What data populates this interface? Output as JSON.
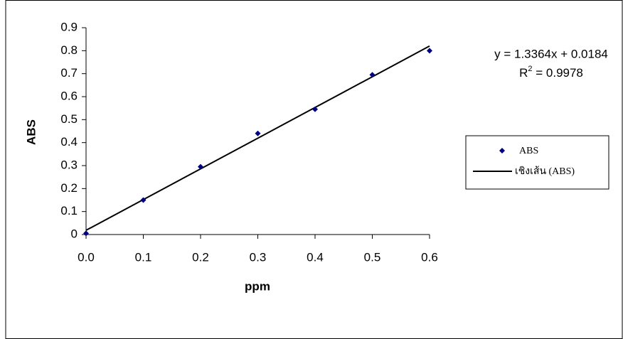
{
  "chart_data": {
    "type": "scatter",
    "x_label": "ppm",
    "y_label": "ABS",
    "x": [
      0,
      0.1,
      0.2,
      0.3,
      0.4,
      0.5,
      0.6
    ],
    "series": [
      {
        "name": "ABS",
        "color": "#000080",
        "values": [
          0.005,
          0.15,
          0.295,
          0.44,
          0.545,
          0.695,
          0.8
        ]
      }
    ],
    "trendline": {
      "name": "เชิงเส้น (ABS)",
      "color": "#000000",
      "x": [
        0,
        0.6
      ],
      "values": [
        0.0184,
        0.8202
      ]
    },
    "equation": "y = 1.3364x + 0.0184",
    "r_squared": {
      "prefix": "R",
      "sup": "2",
      "text": " = 0.9978"
    },
    "xlim": [
      0,
      0.6
    ],
    "xticks": [
      {
        "value": 0,
        "label": "0.0"
      },
      0.1,
      0.2,
      0.3,
      0.4,
      0.5,
      0.6
    ],
    "ylim": [
      0,
      0.9
    ],
    "yticks": [
      0,
      0.1,
      0.2,
      0.3,
      0.4,
      0.5,
      0.6,
      0.7,
      0.8,
      0.9
    ],
    "grid": false,
    "legend": "right"
  }
}
